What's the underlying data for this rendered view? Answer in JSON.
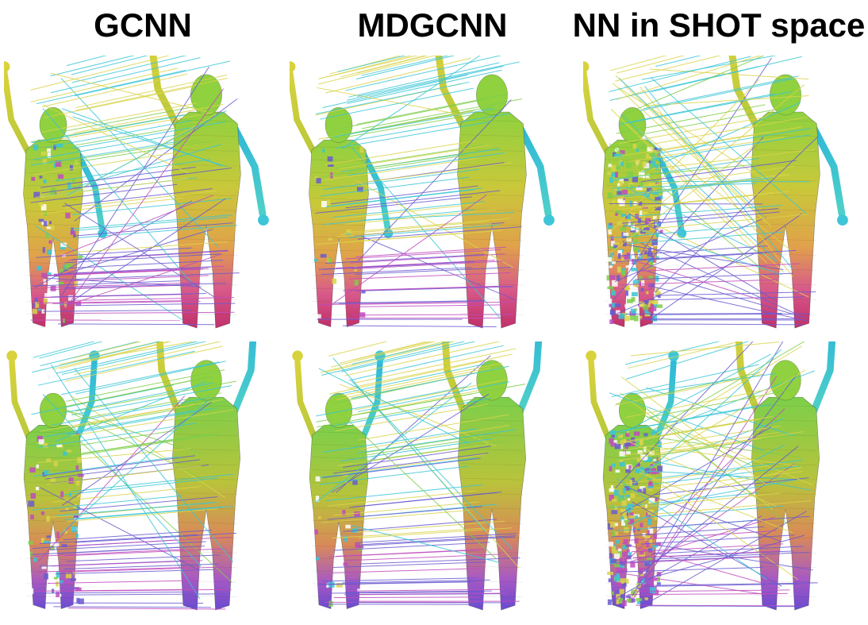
{
  "figure": {
    "columns": [
      {
        "title": "GCNN",
        "method": "gcnn"
      },
      {
        "title": "MDGCNN",
        "method": "mdgcnn"
      },
      {
        "title": "NN in SHOT space",
        "method": "shot"
      }
    ],
    "rows": [
      {
        "pose": "one-arm-raised"
      },
      {
        "pose": "both-arms-raised"
      }
    ],
    "palette": {
      "head": "#8fd13f",
      "torso": "#b7c83a",
      "right_arm": "#3ec6d8",
      "left_arm": "#d8d23c",
      "legs_upper": "#d98a5a",
      "legs_lower": "#b04aa0",
      "feet": "#d8356a",
      "line_cyan": "#39c5d6",
      "line_yellow": "#d9d34a",
      "line_magenta": "#c04bbd",
      "line_purple": "#6a5ad0",
      "line_green": "#7fce4a"
    }
  }
}
